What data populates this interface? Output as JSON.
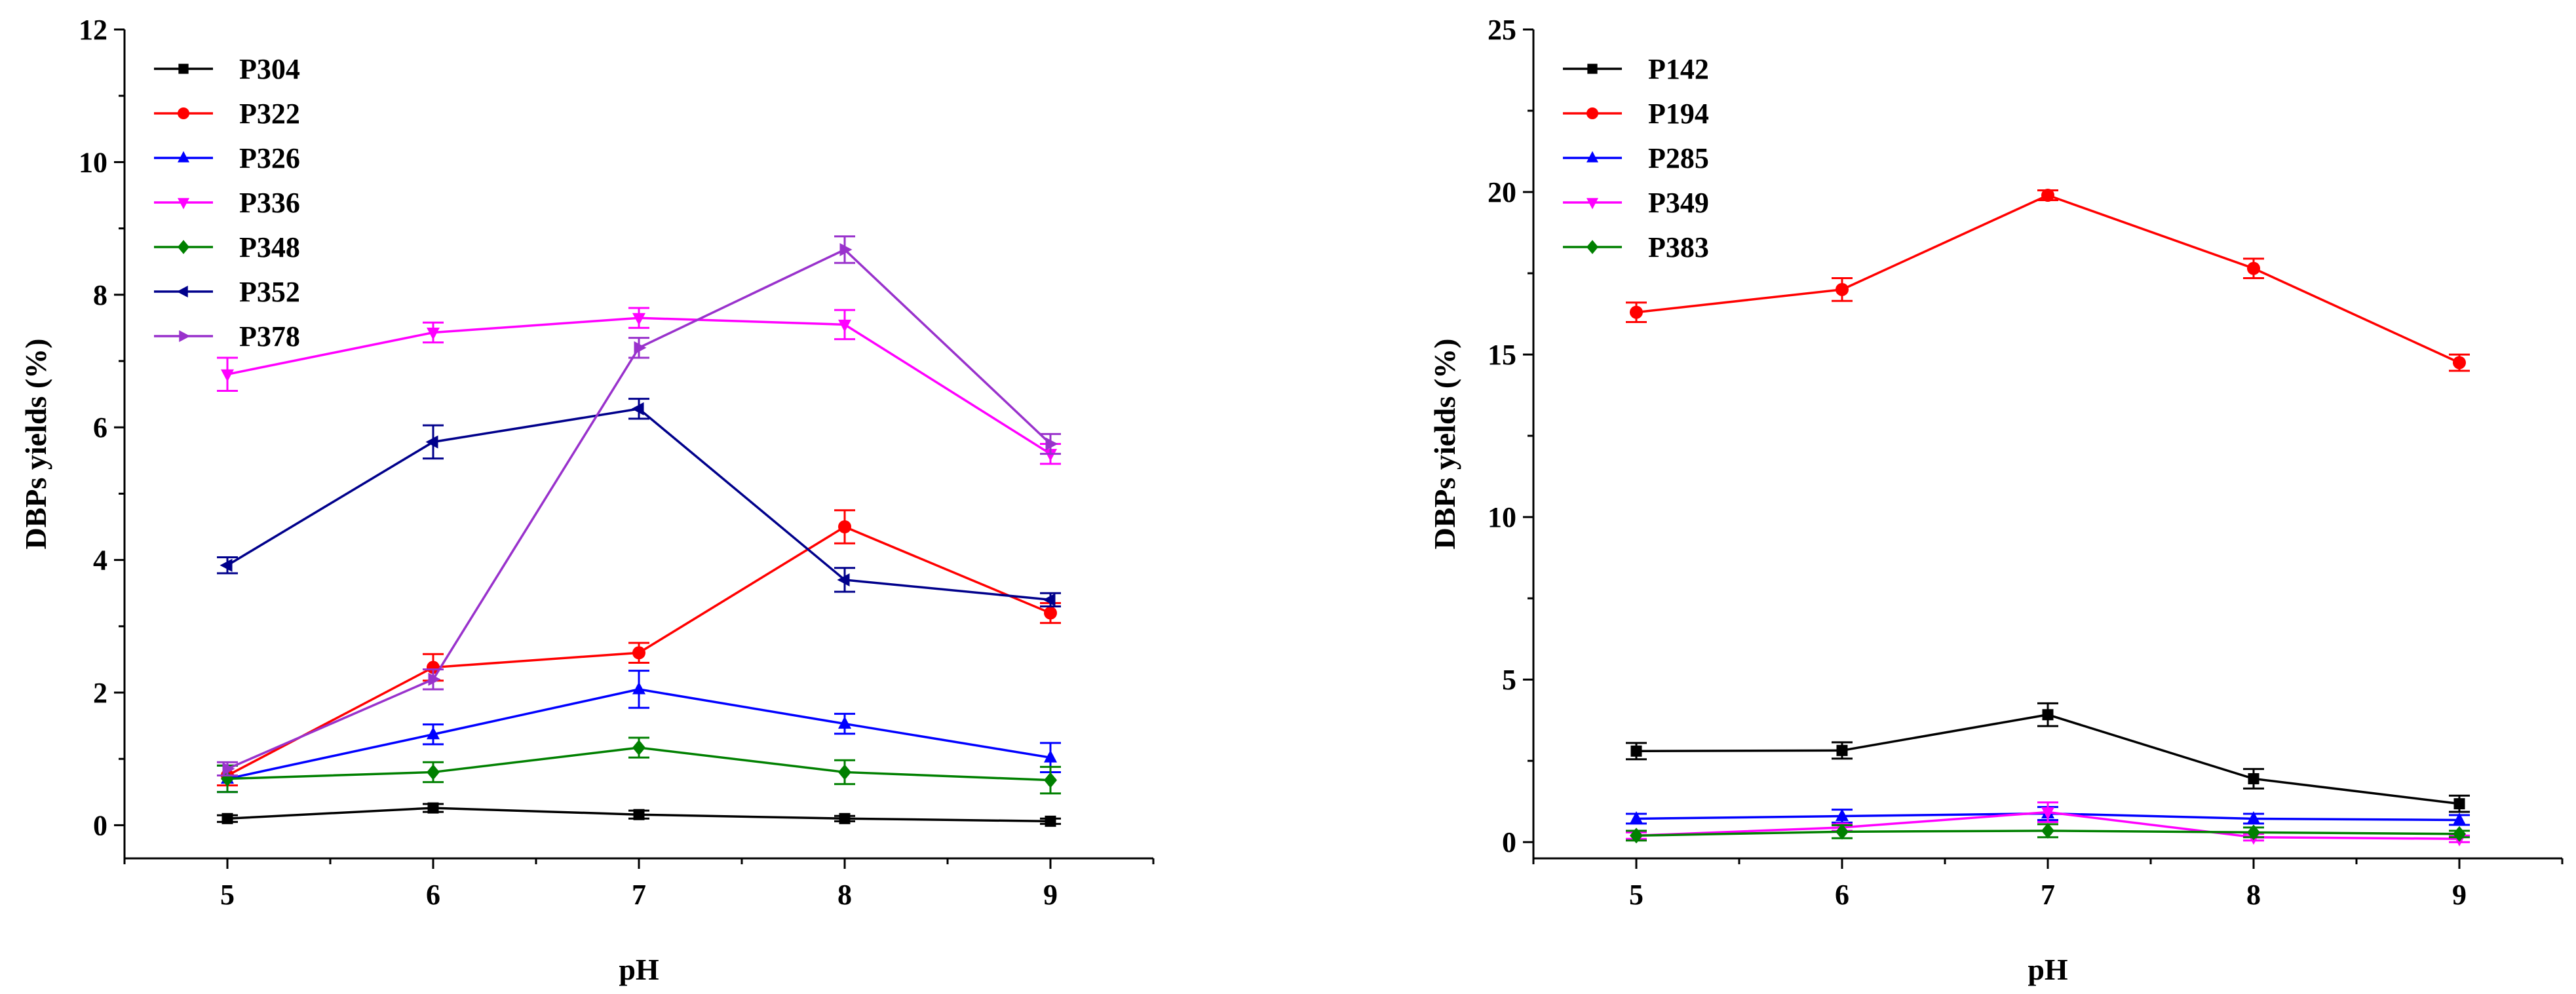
{
  "chart_data": [
    {
      "type": "line",
      "xlabel": "pH",
      "ylabel": "DBPs yields (%)",
      "x": [
        5,
        6,
        7,
        8,
        9
      ],
      "xlim": [
        4.5,
        9.5
      ],
      "ylim": [
        -0.5,
        12
      ],
      "yticks": [
        0,
        2,
        4,
        6,
        8,
        10,
        12
      ],
      "legend": "top-left",
      "series": [
        {
          "name": "P304",
          "color": "#000000",
          "marker": "square",
          "values": [
            0.1,
            0.26,
            0.16,
            0.1,
            0.06
          ],
          "errors": [
            0.05,
            0.06,
            0.06,
            0.04,
            0.04
          ]
        },
        {
          "name": "P322",
          "color": "#ff0000",
          "marker": "circle",
          "values": [
            0.75,
            2.38,
            2.6,
            4.5,
            3.2
          ],
          "errors": [
            0.15,
            0.2,
            0.15,
            0.25,
            0.15
          ]
        },
        {
          "name": "P326",
          "color": "#0000ff",
          "marker": "triangle-up",
          "values": [
            0.7,
            1.37,
            2.05,
            1.53,
            1.02
          ],
          "errors": [
            0.2,
            0.15,
            0.28,
            0.15,
            0.22
          ]
        },
        {
          "name": "P336",
          "color": "#ff00ff",
          "marker": "triangle-down",
          "values": [
            6.8,
            7.43,
            7.65,
            7.55,
            5.6
          ],
          "errors": [
            0.25,
            0.15,
            0.15,
            0.22,
            0.15
          ]
        },
        {
          "name": "P348",
          "color": "#008000",
          "marker": "diamond",
          "values": [
            0.7,
            0.8,
            1.17,
            0.8,
            0.68
          ],
          "errors": [
            0.2,
            0.15,
            0.15,
            0.18,
            0.2
          ]
        },
        {
          "name": "P352",
          "color": "#00008b",
          "marker": "triangle-left",
          "values": [
            3.92,
            5.78,
            6.28,
            3.7,
            3.4
          ],
          "errors": [
            0.12,
            0.25,
            0.15,
            0.18,
            0.1
          ]
        },
        {
          "name": "P378",
          "color": "#9932cc",
          "marker": "triangle-right",
          "values": [
            0.85,
            2.2,
            7.2,
            8.68,
            5.75
          ],
          "errors": [
            0.1,
            0.15,
            0.15,
            0.2,
            0.15
          ]
        }
      ]
    },
    {
      "type": "line",
      "xlabel": "pH",
      "ylabel": "DBPs yields (%)",
      "x": [
        5,
        6,
        7,
        8,
        9
      ],
      "xlim": [
        4.5,
        9.5
      ],
      "ylim": [
        -0.5,
        25
      ],
      "yticks": [
        0,
        5,
        10,
        15,
        20,
        25
      ],
      "legend": "top-left",
      "series": [
        {
          "name": "P142",
          "color": "#000000",
          "marker": "square",
          "values": [
            2.8,
            2.82,
            3.92,
            1.95,
            1.18
          ],
          "errors": [
            0.25,
            0.25,
            0.35,
            0.3,
            0.25
          ]
        },
        {
          "name": "P194",
          "color": "#ff0000",
          "marker": "circle",
          "values": [
            16.3,
            17.0,
            19.9,
            17.65,
            14.75
          ],
          "errors": [
            0.3,
            0.35,
            0.15,
            0.3,
            0.25
          ]
        },
        {
          "name": "P285",
          "color": "#0000ff",
          "marker": "triangle-up",
          "values": [
            0.72,
            0.8,
            0.88,
            0.72,
            0.68
          ],
          "errors": [
            0.15,
            0.2,
            0.2,
            0.15,
            0.15
          ]
        },
        {
          "name": "P349",
          "color": "#ff00ff",
          "marker": "triangle-down",
          "values": [
            0.2,
            0.45,
            0.92,
            0.15,
            0.1
          ],
          "errors": [
            0.1,
            0.1,
            0.3,
            0.1,
            0.1
          ]
        },
        {
          "name": "P383",
          "color": "#008000",
          "marker": "diamond",
          "values": [
            0.2,
            0.32,
            0.35,
            0.3,
            0.25
          ],
          "errors": [
            0.15,
            0.2,
            0.2,
            0.15,
            0.1
          ]
        }
      ]
    }
  ]
}
